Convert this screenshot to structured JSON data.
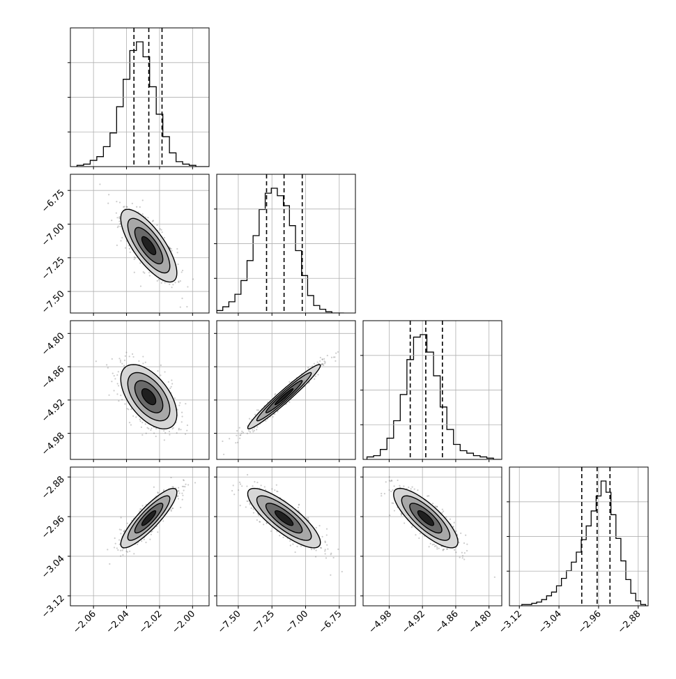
{
  "chart_data": {
    "type": "corner",
    "grid": true,
    "params": [
      {
        "range": [
          -2.074,
          -1.99
        ],
        "ticks": [
          -2.06,
          -2.04,
          -2.02,
          -2.0
        ],
        "tick_labels": [
          "−2.06",
          "−2.04",
          "−2.02",
          "−2.00"
        ],
        "quantiles": [
          -2.0355,
          -2.0265,
          -2.0185
        ],
        "median": -2.0265,
        "hist_bin_edges": [
          -2.07,
          -2.066,
          -2.062,
          -2.058,
          -2.054,
          -2.05,
          -2.046,
          -2.042,
          -2.038,
          -2.034,
          -2.03,
          -2.026,
          -2.022,
          -2.018,
          -2.014,
          -2.01,
          -2.006,
          -2.002,
          -1.998,
          -1.994,
          -1.99
        ],
        "hist_counts": [
          0.01,
          0.02,
          0.05,
          0.08,
          0.16,
          0.27,
          0.48,
          0.7,
          0.93,
          1.0,
          0.88,
          0.64,
          0.42,
          0.24,
          0.11,
          0.04,
          0.02,
          0.01,
          0.0,
          0.0
        ]
      },
      {
        "range": [
          -7.66,
          -6.63
        ],
        "ticks": [
          -7.5,
          -7.25,
          -7.0,
          -6.75
        ],
        "tick_labels": [
          "−7.50",
          "−7.25",
          "−7.00",
          "−6.75"
        ],
        "quantiles": [
          -7.29,
          -7.16,
          -7.025
        ],
        "median": -7.16,
        "hist_bin_edges": [
          -7.66,
          -7.615,
          -7.57,
          -7.525,
          -7.48,
          -7.435,
          -7.39,
          -7.345,
          -7.3,
          -7.255,
          -7.21,
          -7.165,
          -7.12,
          -7.075,
          -7.03,
          -6.985,
          -6.94,
          -6.895,
          -6.85,
          -6.805,
          -6.76,
          -6.715
        ],
        "hist_counts": [
          0.02,
          0.05,
          0.09,
          0.15,
          0.26,
          0.42,
          0.62,
          0.83,
          0.96,
          1.0,
          0.94,
          0.86,
          0.7,
          0.5,
          0.3,
          0.14,
          0.06,
          0.03,
          0.01,
          0.0,
          0.0
        ]
      },
      {
        "range": [
          -5.027,
          -4.777
        ],
        "ticks": [
          -4.98,
          -4.92,
          -4.86,
          -4.8
        ],
        "tick_labels": [
          "−4.98",
          "−4.92",
          "−4.86",
          "−4.80"
        ],
        "quantiles": [
          -4.942,
          -4.914,
          -4.884
        ],
        "median": -4.914,
        "hist_bin_edges": [
          -5.02,
          -5.008,
          -4.996,
          -4.984,
          -4.972,
          -4.96,
          -4.948,
          -4.936,
          -4.924,
          -4.912,
          -4.9,
          -4.888,
          -4.876,
          -4.864,
          -4.852,
          -4.84,
          -4.828,
          -4.816,
          -4.804,
          -4.792,
          -4.78
        ],
        "hist_counts": [
          0.02,
          0.03,
          0.08,
          0.17,
          0.31,
          0.52,
          0.8,
          0.98,
          1.0,
          0.86,
          0.67,
          0.42,
          0.24,
          0.12,
          0.07,
          0.05,
          0.03,
          0.02,
          0.01,
          0.0
        ]
      },
      {
        "range": [
          -3.14,
          -2.86
        ],
        "ticks": [
          -3.12,
          -3.04,
          -2.96,
          -2.88
        ],
        "tick_labels": [
          "−3.12",
          "−3.04",
          "−2.96",
          "−2.88"
        ],
        "quantiles": [
          -2.994,
          -2.963,
          -2.937
        ],
        "median": -2.963,
        "hist_bin_edges": [
          -3.115,
          -3.105,
          -3.095,
          -3.085,
          -3.075,
          -3.065,
          -3.055,
          -3.045,
          -3.035,
          -3.025,
          -3.015,
          -3.005,
          -2.995,
          -2.985,
          -2.975,
          -2.965,
          -2.955,
          -2.945,
          -2.935,
          -2.925,
          -2.915,
          -2.905,
          -2.895,
          -2.885,
          -2.875,
          -2.865
        ],
        "hist_counts": [
          0.01,
          0.01,
          0.02,
          0.03,
          0.05,
          0.08,
          0.11,
          0.16,
          0.22,
          0.28,
          0.35,
          0.43,
          0.53,
          0.64,
          0.76,
          0.88,
          1.0,
          0.91,
          0.73,
          0.54,
          0.36,
          0.21,
          0.1,
          0.04,
          0.01
        ]
      }
    ],
    "pairs": [
      {
        "x": 0,
        "y": 1,
        "center": [
          -2.0265,
          -7.16
        ],
        "sd": [
          0.0085,
          0.135
        ],
        "corr": -0.75
      },
      {
        "x": 0,
        "y": 2,
        "center": [
          -2.0265,
          -4.914
        ],
        "sd": [
          0.0085,
          0.029
        ],
        "corr": -0.55
      },
      {
        "x": 1,
        "y": 2,
        "center": [
          -7.16,
          -4.914
        ],
        "sd": [
          0.135,
          0.029
        ],
        "corr": 0.97
      },
      {
        "x": 0,
        "y": 3,
        "center": [
          -2.0265,
          -2.963
        ],
        "sd": [
          0.0085,
          0.03
        ],
        "corr": 0.87
      },
      {
        "x": 1,
        "y": 3,
        "center": [
          -7.16,
          -2.963
        ],
        "sd": [
          0.135,
          0.03
        ],
        "corr": -0.82
      },
      {
        "x": 2,
        "y": 3,
        "center": [
          -4.914,
          -2.963
        ],
        "sd": [
          0.029,
          0.03
        ],
        "corr": -0.8
      }
    ],
    "contour_levels_sigma": [
      0.5,
      1.0,
      1.5,
      2.0
    ],
    "colors": {
      "line": "#000000",
      "grid": "#b0b0b0",
      "points": "#6e6e6e",
      "hist": "#000000"
    }
  }
}
